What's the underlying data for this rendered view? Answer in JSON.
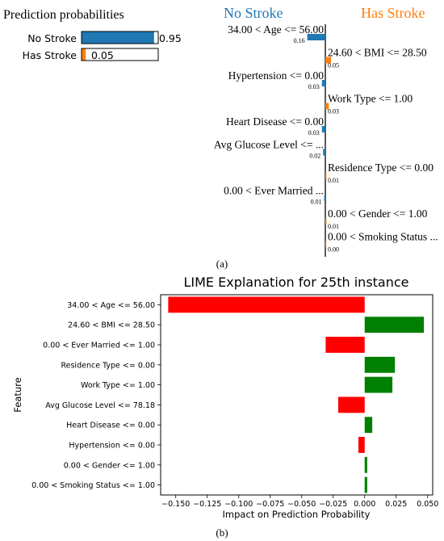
{
  "panel_a": {
    "label": "(a)",
    "probabilities": {
      "title": "Prediction probabilities",
      "rows": [
        {
          "label": "No Stroke",
          "value": 0.95,
          "value_text": "0.95",
          "color": "#1f77b4"
        },
        {
          "label": "Has Stroke",
          "value": 0.05,
          "value_text": "0.05",
          "color": "#ff7f0e"
        }
      ]
    },
    "contributions": {
      "left_header": "No Stroke",
      "right_header": "Has Stroke",
      "left_color": "#1f77b4",
      "right_color": "#ff7f0e",
      "rows": [
        {
          "feature": "34.00 < Age <= 56.00",
          "side": "left",
          "weight": 0.16,
          "weight_text": "0.16"
        },
        {
          "feature": "24.60 < BMI <= 28.50",
          "side": "right",
          "weight": 0.05,
          "weight_text": "0.05"
        },
        {
          "feature": "Hypertension <= 0.00",
          "side": "left",
          "weight": 0.03,
          "weight_text": "0.03"
        },
        {
          "feature": "Work Type <= 1.00",
          "side": "right",
          "weight": 0.03,
          "weight_text": "0.03"
        },
        {
          "feature": "Heart Disease <= 0.00",
          "side": "left",
          "weight": 0.03,
          "weight_text": "0.03"
        },
        {
          "feature": "Avg Glucose Level <= ...",
          "side": "left",
          "weight": 0.02,
          "weight_text": "0.02"
        },
        {
          "feature": "Residence Type <= 0.00",
          "side": "right",
          "weight": 0.01,
          "weight_text": "0.01"
        },
        {
          "feature": "0.00 < Ever Married ...",
          "side": "left",
          "weight": 0.01,
          "weight_text": "0.01"
        },
        {
          "feature": "0.00 < Gender <= 1.00",
          "side": "right",
          "weight": 0.01,
          "weight_text": "0.01"
        },
        {
          "feature": "0.00 < Smoking Status ...",
          "side": "right",
          "weight": 0.0,
          "weight_text": "0.00"
        }
      ]
    }
  },
  "panel_b": {
    "label": "(b)"
  },
  "chart_data": [
    {
      "type": "bar",
      "orientation": "horizontal",
      "title": "Prediction probabilities",
      "categories": [
        "No Stroke",
        "Has Stroke"
      ],
      "values": [
        0.95,
        0.05
      ],
      "colors": [
        "#1f77b4",
        "#ff7f0e"
      ],
      "xlim": [
        0,
        1
      ]
    },
    {
      "type": "bar",
      "orientation": "horizontal",
      "title": "",
      "series_headers": [
        "No Stroke",
        "Has Stroke"
      ],
      "categories": [
        "34.00 < Age <= 56.00",
        "24.60 < BMI <= 28.50",
        "Hypertension <= 0.00",
        "Work Type <= 1.00",
        "Heart Disease <= 0.00",
        "Avg Glucose Level <= ...",
        "Residence Type <= 0.00",
        "0.00 < Ever Married ...",
        "0.00 < Gender <= 1.00",
        "0.00 < Smoking Status ..."
      ],
      "values": [
        -0.16,
        0.05,
        -0.03,
        0.03,
        -0.03,
        -0.02,
        0.01,
        -0.01,
        0.01,
        0.0
      ],
      "colors": {
        "negative": "#1f77b4",
        "positive": "#ff7f0e"
      }
    },
    {
      "type": "bar",
      "orientation": "horizontal",
      "title": "LIME Explanation for 25th instance",
      "xlabel": "Impact on Prediction Probability",
      "ylabel": "Feature",
      "categories": [
        "34.00 < Age <= 56.00",
        "24.60 < BMI <= 28.50",
        "0.00 < Ever Married <= 1.00",
        "Residence Type <= 0.00",
        "Work Type <= 1.00",
        "Avg Glucose Level <= 78.18",
        "Heart Disease <= 0.00",
        "Hypertension <= 0.00",
        "0.00 < Gender <= 1.00",
        "0.00 < Smoking Status <= 1.00"
      ],
      "values": [
        -0.156,
        0.047,
        -0.031,
        0.024,
        0.022,
        -0.021,
        0.006,
        -0.005,
        0.002,
        0.002
      ],
      "xlim": [
        -0.162,
        0.054
      ],
      "xticks": [
        -0.15,
        -0.125,
        -0.1,
        -0.075,
        -0.05,
        -0.025,
        0.0,
        0.025,
        0.05
      ],
      "xtick_labels": [
        "−0.150",
        "−0.125",
        "−0.100",
        "−0.075",
        "−0.050",
        "−0.025",
        "0.000",
        "0.025",
        "0.050"
      ],
      "colors": {
        "negative": "#ff0000",
        "positive": "#008000"
      },
      "grid": false
    }
  ]
}
